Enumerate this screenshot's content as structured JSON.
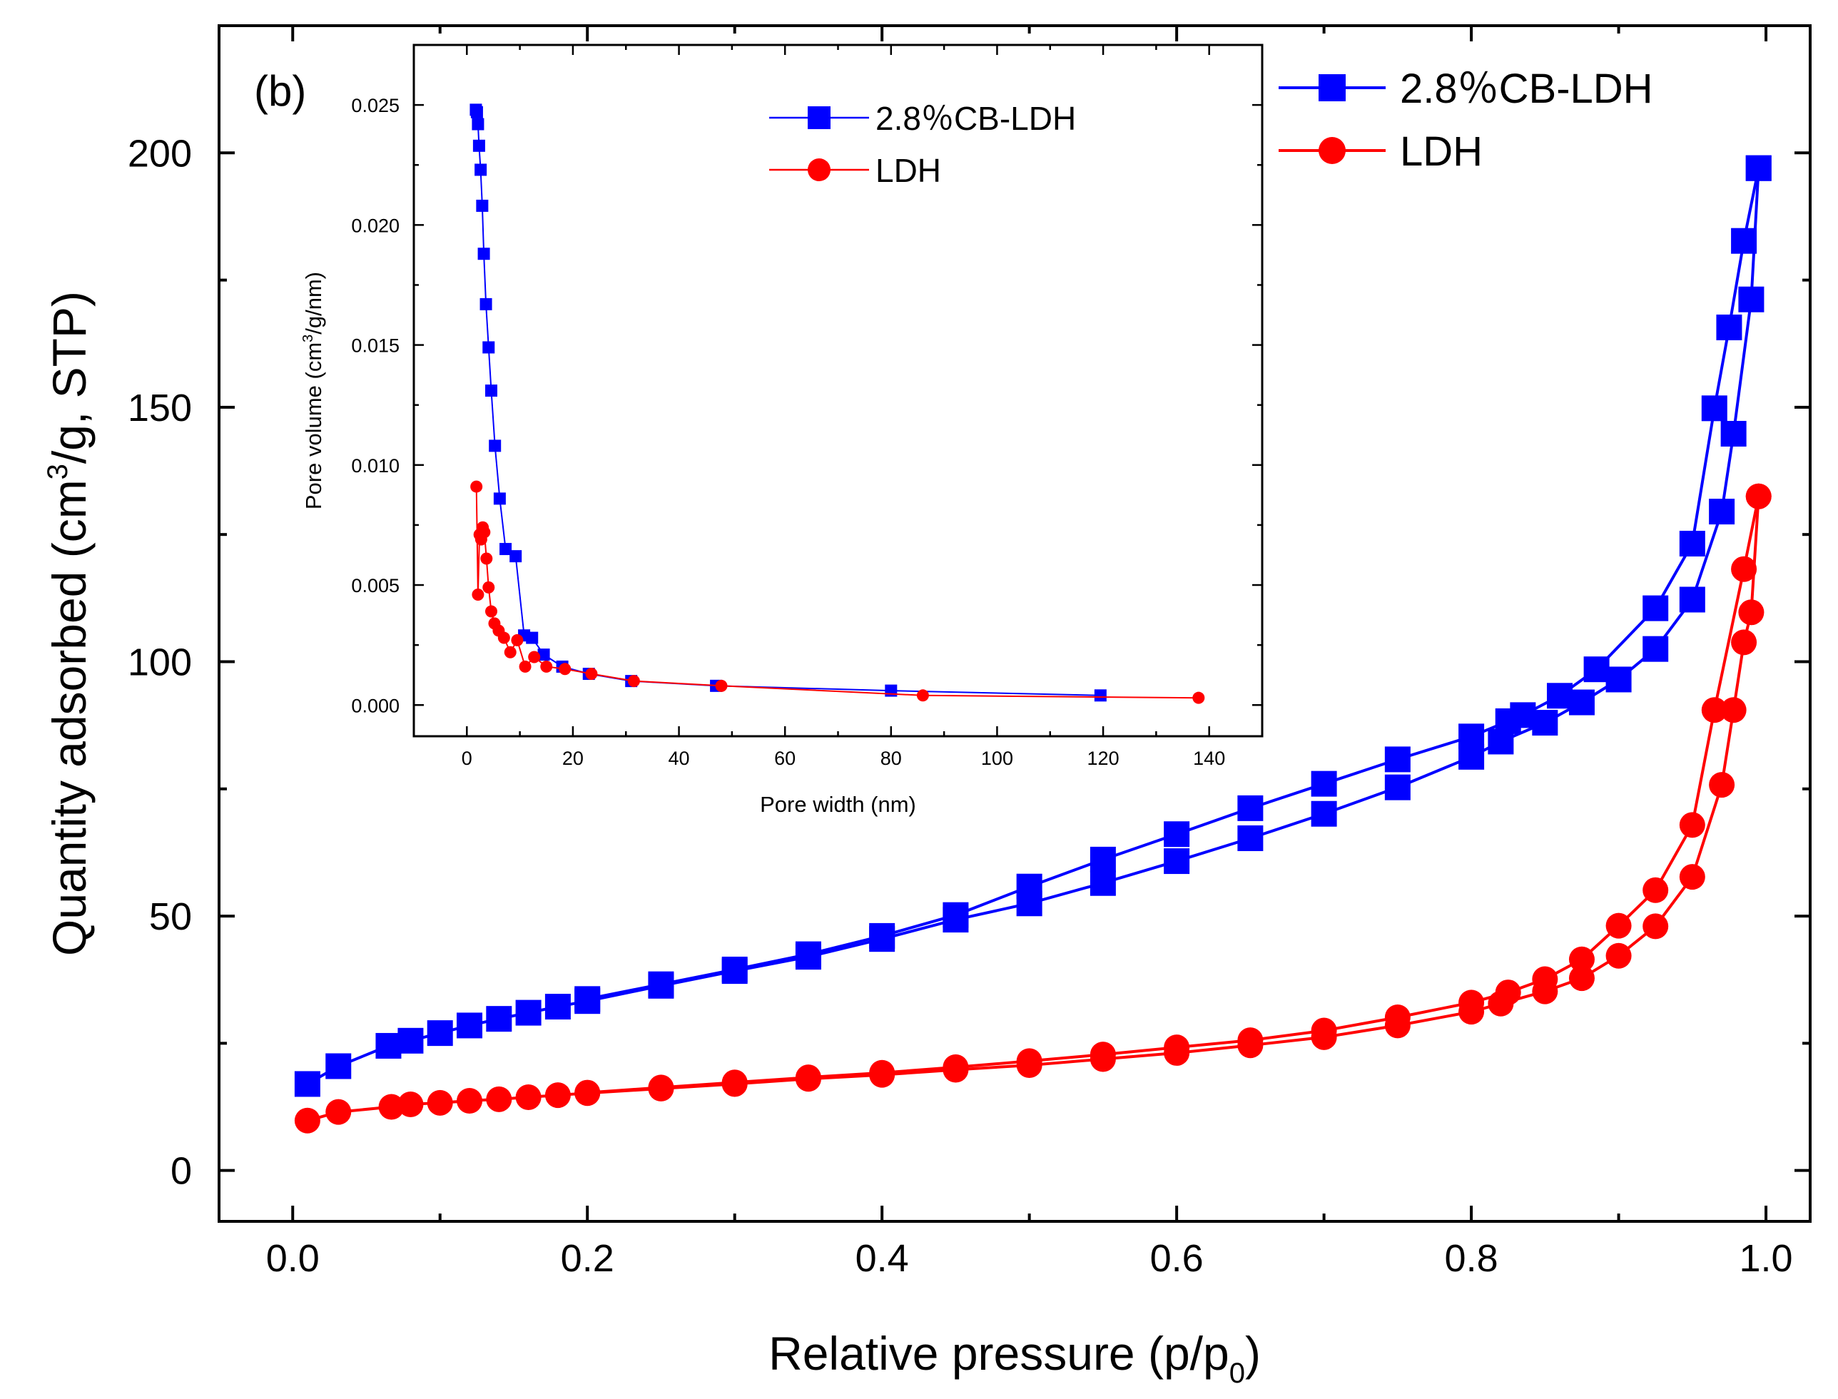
{
  "chart_data": [
    {
      "type": "line",
      "panel_label": "(b)",
      "title": "",
      "xlabel": "Relative pressure (p/p",
      "xlabel_sub": "0",
      "xlabel_end": ")",
      "ylabel_pre": "Quantity adsorbed (cm",
      "ylabel_sup": "3",
      "ylabel_post": "/g, STP)",
      "xlim": [
        -0.05,
        1.03
      ],
      "ylim": [
        -10,
        225
      ],
      "xticks": [
        "0.0",
        "0.2",
        "0.4",
        "0.6",
        "0.8",
        "1.0"
      ],
      "xtick_values": [
        0,
        0.2,
        0.4,
        0.6,
        0.8,
        1.0
      ],
      "yticks": [
        "0",
        "50",
        "100",
        "150",
        "200"
      ],
      "ytick_values": [
        0,
        50,
        100,
        150,
        200
      ],
      "legend_position": "top-right",
      "series": [
        {
          "name": "2.8％CB-LDH",
          "color": "#0000ff",
          "marker": "square",
          "adsorption": {
            "x": [
              0.01,
              0.031,
              0.065,
              0.08,
              0.1,
              0.12,
              0.14,
              0.16,
              0.18,
              0.2,
              0.25,
              0.3,
              0.35,
              0.4,
              0.45,
              0.5,
              0.55,
              0.6,
              0.65,
              0.7,
              0.75,
              0.8,
              0.82,
              0.85,
              0.875,
              0.9,
              0.925,
              0.95,
              0.97,
              0.978,
              0.99,
              0.995
            ],
            "y": [
              17,
              20.5,
              24.5,
              25.5,
              27,
              28.5,
              29.8,
              31,
              32.2,
              33.3,
              36.3,
              39.2,
              42,
              45.5,
              49.3,
              52.5,
              56.5,
              60.8,
              65.3,
              70.1,
              75.3,
              81.3,
              84.3,
              88,
              92,
              96.5,
              102.5,
              112.2,
              129.5,
              144.8,
              171.2,
              197
            ]
          },
          "desorption": {
            "x": [
              0.995,
              0.985,
              0.975,
              0.965,
              0.95,
              0.925,
              0.885,
              0.86,
              0.835,
              0.825,
              0.8,
              0.75,
              0.7,
              0.65,
              0.6,
              0.55,
              0.5,
              0.45,
              0.4,
              0.35,
              0.3,
              0.25,
              0.2
            ],
            "y": [
              197,
              182.7,
              165.7,
              149.8,
              123.2,
              110.5,
              98.5,
              93.3,
              89.5,
              88.3,
              85.3,
              80.8,
              76,
              71.2,
              66.1,
              61.1,
              55.8,
              50.2,
              46.1,
              42.5,
              39.5,
              36.6,
              33.7
            ]
          }
        },
        {
          "name": "LDH",
          "color": "#ff0000",
          "marker": "circle",
          "adsorption": {
            "x": [
              0.01,
              0.031,
              0.067,
              0.08,
              0.1,
              0.12,
              0.14,
              0.16,
              0.18,
              0.2,
              0.25,
              0.3,
              0.35,
              0.4,
              0.45,
              0.5,
              0.55,
              0.6,
              0.65,
              0.7,
              0.75,
              0.8,
              0.82,
              0.85,
              0.875,
              0.9,
              0.925,
              0.95,
              0.97,
              0.978,
              0.985,
              0.99,
              0.995
            ],
            "y": [
              9.8,
              11.5,
              12.5,
              13,
              13.3,
              13.7,
              14,
              14.4,
              14.8,
              15.2,
              16.1,
              17,
              18,
              18.8,
              19.8,
              20.7,
              21.9,
              23.1,
              24.6,
              26.2,
              28.5,
              31.2,
              32.8,
              35.2,
              37.8,
              42.2,
              48,
              57.7,
              75.8,
              90.5,
              103.8,
              109.7,
              132.5
            ]
          },
          "desorption": {
            "x": [
              0.995,
              0.985,
              0.965,
              0.95,
              0.925,
              0.9,
              0.875,
              0.85,
              0.825,
              0.8,
              0.75,
              0.7,
              0.65,
              0.6,
              0.55,
              0.5,
              0.45,
              0.4,
              0.35,
              0.3,
              0.25,
              0.2
            ],
            "y": [
              132.5,
              118.2,
              90.5,
              67.9,
              55.1,
              48.1,
              41.5,
              37.6,
              35,
              33,
              30.1,
              27.5,
              25.6,
              24.2,
              22.8,
              21.5,
              20.3,
              19.2,
              18.3,
              17.3,
              16.3,
              15.3
            ]
          }
        }
      ]
    },
    {
      "type": "line",
      "title": "",
      "xlabel": "Pore width (nm)",
      "ylabel_pre": "Pore volume (cm",
      "ylabel_sup": "3",
      "ylabel_post": "/g/nm)",
      "xlim": [
        -10,
        150
      ],
      "ylim": [
        -0.0013,
        0.0275
      ],
      "xticks": [
        "0",
        "20",
        "40",
        "60",
        "80",
        "100",
        "120",
        "140"
      ],
      "xtick_values": [
        0,
        20,
        40,
        60,
        80,
        100,
        120,
        140
      ],
      "yticks": [
        "0.000",
        "0.005",
        "0.010",
        "0.015",
        "0.020",
        "0.025"
      ],
      "ytick_values": [
        0,
        0.005,
        0.01,
        0.015,
        0.02,
        0.025
      ],
      "legend_position": "top-right",
      "series": [
        {
          "name": "2.8％CB-LDH",
          "color": "#0000ff",
          "marker": "square",
          "x": [
            1.7,
            1.9,
            2.1,
            2.3,
            2.6,
            2.9,
            3.2,
            3.6,
            4.1,
            4.6,
            5.3,
            6.2,
            7.3,
            9.2,
            10.8,
            12.3,
            14.5,
            18,
            23,
            31,
            47,
            80,
            119.5
          ],
          "y": [
            0.0248,
            0.0247,
            0.0242,
            0.0233,
            0.0223,
            0.0208,
            0.0188,
            0.0167,
            0.0149,
            0.0131,
            0.0108,
            0.0086,
            0.0065,
            0.0062,
            0.0029,
            0.0028,
            0.0021,
            0.0016,
            0.0013,
            0.001,
            0.0008,
            0.0006,
            0.0004
          ]
        },
        {
          "name": "LDH",
          "color": "#ff0000",
          "marker": "circle",
          "x": [
            1.8,
            2.1,
            2.4,
            2.7,
            3.0,
            3.3,
            3.7,
            4.1,
            4.6,
            5.2,
            6.0,
            7.0,
            8.2,
            9.5,
            11,
            12.7,
            15,
            18.5,
            23.5,
            31.5,
            48,
            86,
            138
          ],
          "y": [
            0.0091,
            0.0046,
            0.0071,
            0.0069,
            0.0074,
            0.0072,
            0.0061,
            0.0049,
            0.0039,
            0.0034,
            0.0031,
            0.0028,
            0.0022,
            0.0027,
            0.0016,
            0.002,
            0.0016,
            0.0015,
            0.0013,
            0.001,
            0.0008,
            0.0004,
            0.0003
          ]
        }
      ]
    }
  ]
}
